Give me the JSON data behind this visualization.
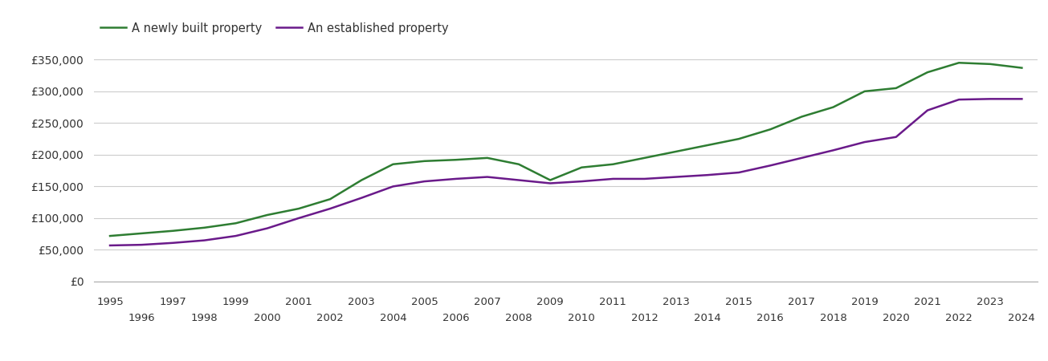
{
  "newly_built": {
    "years": [
      1995,
      1996,
      1997,
      1998,
      1999,
      2000,
      2001,
      2002,
      2003,
      2004,
      2005,
      2006,
      2007,
      2008,
      2009,
      2010,
      2011,
      2012,
      2013,
      2014,
      2015,
      2016,
      2017,
      2018,
      2019,
      2020,
      2021,
      2022,
      2023,
      2024
    ],
    "values": [
      72000,
      76000,
      80000,
      85000,
      92000,
      105000,
      115000,
      130000,
      160000,
      185000,
      190000,
      192000,
      195000,
      185000,
      160000,
      180000,
      185000,
      195000,
      205000,
      215000,
      225000,
      240000,
      260000,
      275000,
      300000,
      305000,
      330000,
      345000,
      343000,
      337000
    ]
  },
  "established": {
    "years": [
      1995,
      1996,
      1997,
      1998,
      1999,
      2000,
      2001,
      2002,
      2003,
      2004,
      2005,
      2006,
      2007,
      2008,
      2009,
      2010,
      2011,
      2012,
      2013,
      2014,
      2015,
      2016,
      2017,
      2018,
      2019,
      2020,
      2021,
      2022,
      2023,
      2024
    ],
    "values": [
      57000,
      58000,
      61000,
      65000,
      72000,
      84000,
      100000,
      115000,
      132000,
      150000,
      158000,
      162000,
      165000,
      160000,
      155000,
      158000,
      162000,
      162000,
      165000,
      168000,
      172000,
      183000,
      195000,
      207000,
      220000,
      228000,
      270000,
      287000,
      288000,
      288000
    ]
  },
  "newly_built_color": "#2e7d32",
  "established_color": "#6a1a8a",
  "newly_built_label": "A newly built property",
  "established_label": "An established property",
  "ylim": [
    0,
    370000
  ],
  "yticks": [
    0,
    50000,
    100000,
    150000,
    200000,
    250000,
    300000,
    350000
  ],
  "ytick_labels": [
    "£0",
    "£50,000",
    "£100,000",
    "£150,000",
    "£200,000",
    "£250,000",
    "£300,000",
    "£350,000"
  ],
  "xlim_min": 1994.5,
  "xlim_max": 2024.5,
  "xticks_top": [
    1995,
    1997,
    1999,
    2001,
    2003,
    2005,
    2007,
    2009,
    2011,
    2013,
    2015,
    2017,
    2019,
    2021,
    2023
  ],
  "xticks_bottom": [
    1996,
    1998,
    2000,
    2002,
    2004,
    2006,
    2008,
    2010,
    2012,
    2014,
    2016,
    2018,
    2020,
    2022,
    2024
  ],
  "background_color": "#ffffff",
  "grid_color": "#cccccc",
  "line_width": 1.8
}
